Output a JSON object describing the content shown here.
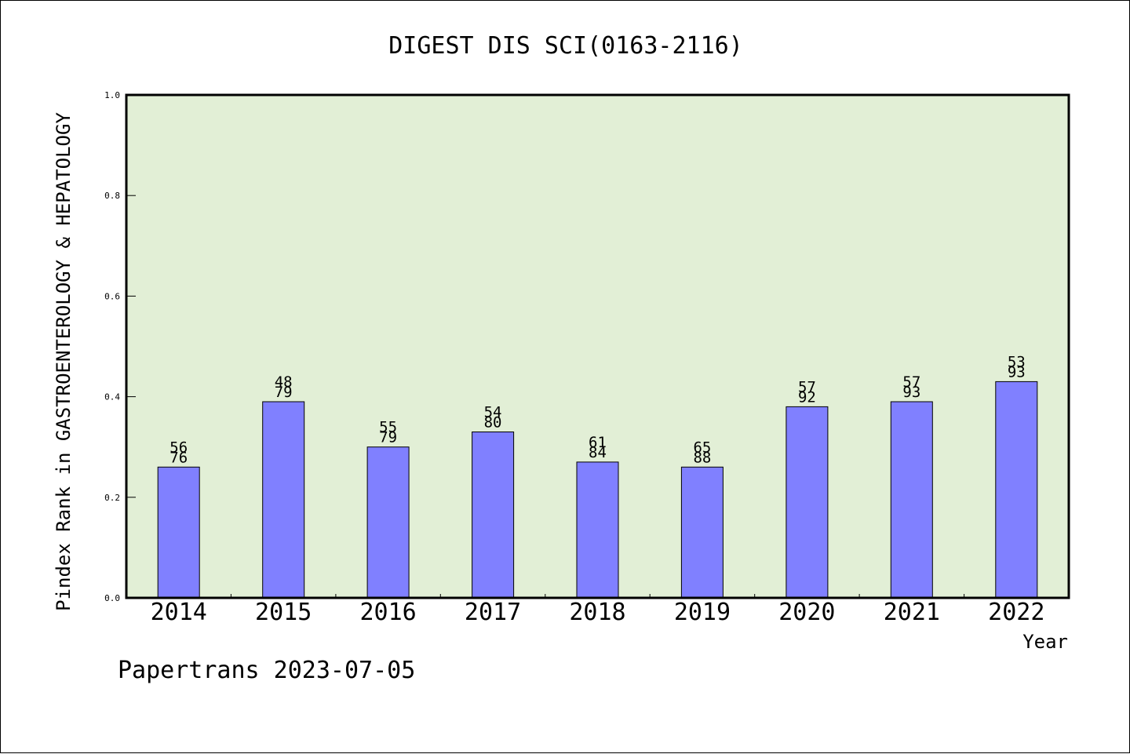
{
  "chart_data": {
    "type": "bar",
    "title": "DIGEST DIS SCI(0163-2116)",
    "xlabel": "Year",
    "ylabel": "Pindex Rank in GASTROENTEROLOGY & HEPATOLOGY",
    "credit": "Papertrans 2023-07-05",
    "categories": [
      "2014",
      "2015",
      "2016",
      "2017",
      "2018",
      "2019",
      "2020",
      "2021",
      "2022"
    ],
    "values": [
      0.26,
      0.39,
      0.3,
      0.33,
      0.27,
      0.26,
      0.38,
      0.39,
      0.43
    ],
    "rank_labels": [
      [
        "56",
        "76"
      ],
      [
        "48",
        "79"
      ],
      [
        "55",
        "79"
      ],
      [
        "54",
        "80"
      ],
      [
        "61",
        "84"
      ],
      [
        "65",
        "88"
      ],
      [
        "57",
        "92"
      ],
      [
        "57",
        "93"
      ],
      [
        "53",
        "93"
      ]
    ],
    "ylim": [
      0.0,
      1.0
    ],
    "yticks": [
      "0.0",
      "0.2",
      "0.4",
      "0.6",
      "0.8",
      "1.0"
    ],
    "grid": false,
    "colors": {
      "plot_background": "#e2efd6",
      "bar_fill": "#8080ff",
      "bar_stroke": "#000000",
      "axis": "#000000"
    }
  }
}
